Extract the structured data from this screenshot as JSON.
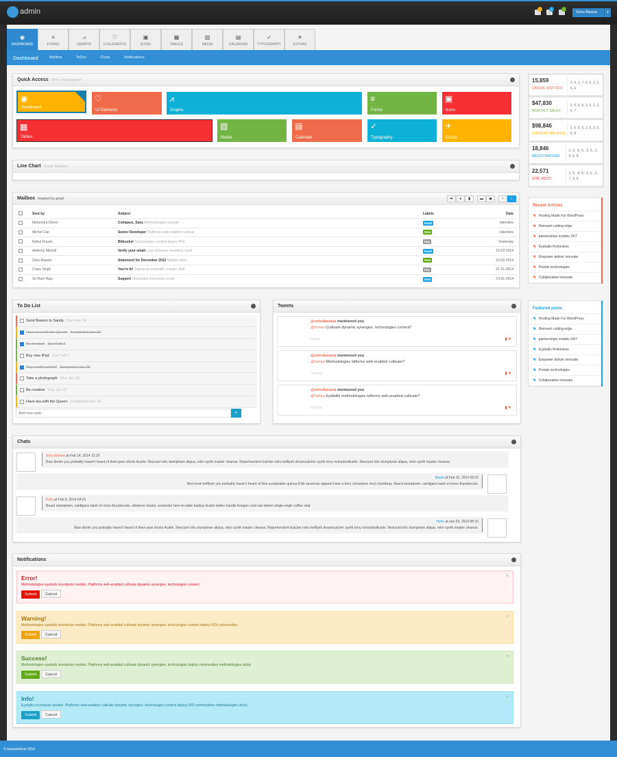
{
  "header": {
    "brand": "admin",
    "user": "Srinu Baswa",
    "badges": [
      {
        "icon": "mail-icon",
        "count": "3",
        "color": "#f0a30a"
      },
      {
        "icon": "users-icon",
        "count": "5",
        "color": "#1ba1e2"
      },
      {
        "icon": "cart-icon",
        "count": "9",
        "color": "#60a917"
      }
    ]
  },
  "tabs": [
    {
      "label": "DASHBOARD",
      "icon": "dashboard-icon",
      "glyph": "◉"
    },
    {
      "label": "FORMS",
      "icon": "list-icon",
      "glyph": "≡"
    },
    {
      "label": "GRAPHS",
      "icon": "chart-icon",
      "glyph": "⩘"
    },
    {
      "label": "UI ELEMENTS",
      "icon": "heart-icon",
      "glyph": "♡"
    },
    {
      "label": "ICONS",
      "icon": "briefcase-icon",
      "glyph": "▣"
    },
    {
      "label": "TABLES",
      "icon": "table-icon",
      "glyph": "▦"
    },
    {
      "label": "MEDIA",
      "icon": "image-icon",
      "glyph": "▨"
    },
    {
      "label": "CALENDAR",
      "icon": "calendar-icon",
      "glyph": "▤"
    },
    {
      "label": "TYPOGRAPHY",
      "icon": "typography-icon",
      "glyph": "✓"
    },
    {
      "label": "EXTRAS",
      "icon": "plane-icon",
      "glyph": "✈"
    }
  ],
  "subnav": {
    "current": "Dashboard",
    "items": [
      "Mailbox",
      "ToDos",
      "Chats",
      "Notifications"
    ]
  },
  "quick": {
    "title": "Quick Access",
    "subtitle": "Metro UI Navigation",
    "tiles": [
      {
        "label": "Dashboard",
        "glyph": "◉",
        "color": "#ffb300"
      },
      {
        "label": "UI Elements",
        "glyph": "♡",
        "color": "#ef6b49"
      },
      {
        "label": "Graphs",
        "glyph": "⩘",
        "color": "#0fb0d8"
      },
      {
        "label": "Forms",
        "glyph": "≡",
        "color": "#73b544"
      },
      {
        "label": "Icons",
        "glyph": "▣",
        "color": "#f52f33"
      },
      {
        "label": "Tables",
        "glyph": "▦",
        "color": "#f52f33"
      },
      {
        "label": "Media",
        "glyph": "▨",
        "color": "#73b544"
      },
      {
        "label": "Calendar",
        "glyph": "▤",
        "color": "#ef6b49"
      },
      {
        "label": "Typography",
        "glyph": "✓",
        "color": "#0fb0d8"
      },
      {
        "label": "Extras",
        "glyph": "✈",
        "color": "#ffb300"
      }
    ]
  },
  "linechart": {
    "title": "Line Chart",
    "subtitle": "Social Statistics"
  },
  "mailbox": {
    "title": "Mailbox",
    "subtitle": "Inspired by gmail",
    "columns": [
      "Sent by",
      "Subject",
      "Labels",
      "Date"
    ],
    "rows": [
      {
        "from": "Mahendra Dhoni",
        "subject": "Compass, Sass",
        "preview": "Methodologies eyeball",
        "label": "Read",
        "label_color": "#1ba1e2",
        "date": "Valentine"
      },
      {
        "from": "Michel Clar",
        "subject": "Senior Developer",
        "preview": "Platforms web-enabled cultivat",
        "label": "New",
        "label_color": "#60a917",
        "date": "Valentine"
      },
      {
        "from": "Rahul Dravid",
        "subject": "Bitbucket",
        "preview": "Technologies content deploy ROI",
        "label": "Imp",
        "label_color": "#999999",
        "date": "Yesterday"
      },
      {
        "from": "Anthony Michell",
        "subject": "Verify your email",
        "preview": "Less schemas seamless band",
        "label": "Read",
        "label_color": "#1ba1e2",
        "date": "15-02-2014"
      },
      {
        "from": "Srinu Baswa",
        "subject": "Statement for December 2012",
        "preview": "Models seize",
        "label": "New",
        "label_color": "#60a917",
        "date": "10-02-2014"
      },
      {
        "from": "Crazy Singh",
        "subject": "You're In!",
        "preview": "Tagclouds endwidth, margin, distr",
        "label": "Imp",
        "label_color": "#999999",
        "date": "21-01-2014"
      },
      {
        "from": "Sri Ram Raju",
        "subject": "Support",
        "preview": "Distributed incentivize enabl",
        "label": "New",
        "label_color": "#1ba1e2",
        "date": "19-01-2014"
      }
    ]
  },
  "todo": {
    "title": "To Do List",
    "placeholder": "Add new task",
    "add": "+",
    "items": [
      {
        "text": "Send flowers to Sandy",
        "due": "Due Feb 14",
        "done": false,
        "color": "#ef6b49"
      },
      {
        "text": "Have tea with the Queen",
        "due": "Completed Jan 20",
        "done": true,
        "color": "#ffb300"
      },
      {
        "text": "Be creative",
        "due": "Due Feb 2",
        "done": true,
        "color": "#73b544"
      },
      {
        "text": "Buy new iPad",
        "due": "Due Feb 7",
        "done": false,
        "color": "#73b544"
      },
      {
        "text": "Pay credit card bill",
        "due": "Completed Jan 20",
        "done": true,
        "color": "#ffb300"
      },
      {
        "text": "Take a photograph",
        "due": "Due Jan 30",
        "done": false,
        "color": "#ef6b49"
      },
      {
        "text": "Be creative",
        "due": "Due Jan 22",
        "done": false,
        "color": "#73b544"
      },
      {
        "text": "Have tea with the Queen",
        "due": "Completed Jan 18",
        "done": false,
        "color": "#ffb300"
      }
    ]
  },
  "tweets": {
    "title": "Tweets",
    "items": [
      {
        "user": "@srinubasava",
        "action": "mentioned you",
        "to": "@hohoo",
        "text": "Cultivate dynamic synergies. technologies content?",
        "time": "2mins"
      },
      {
        "user": "@srinubasava",
        "action": "mentioned you",
        "to": "@hehee",
        "text": "Methodologies latforms web-enabled cultivate?",
        "time": "10mins"
      },
      {
        "user": "@srinubasava",
        "action": "mentioned you",
        "to": "@hahaa",
        "text": "Eyeballs methodologies latforms web-enabled cultivate?",
        "time": "22mins"
      }
    ]
  },
  "chats": {
    "title": "Chats",
    "items": [
      {
        "name": "Srinu Baswa",
        "when": "at Feb 14, 2014 12:20",
        "text": "Raw denim you probably haven't heard of them jean shorts Austin. Nesciunt tofu stumptown aliqua, retro synth master cleanse. Reprehenderit butcher retro keffiyeh dreamcatcher synth terry richardsoAustin. Nesciunt tofu stumptown aliqua, retro synth master cleanse.",
        "side": "left"
      },
      {
        "name": "Naani",
        "when": "at Feb 10, 2014 09:32",
        "text": "Next level keffiyeh you probably haven't heard of fixie sustainable quinoa 8-bit american apparel have a terry richardson vinyl chambray. Beard stumptown, cardigans banh mi lomo thundercats.",
        "side": "right"
      },
      {
        "name": "Kelly",
        "when": "at Feb 8, 2014 04:21",
        "text": "Beard stumptown, cardigans banh mi lomo thundercats. whatever keytar, scenester farm-to-table banksy Austin twitter handle freegan cred raw denim single-origin coffee viral.",
        "side": "left"
      },
      {
        "name": "Hehe",
        "when": "at Jan 29, 2014 08:10",
        "text": "Raw denim you probably haven't heard of them jean shorts Austin. Nesciunt tofu stumptown aliqua, retro synth master cleanse. Reprehenderit butcher retro keffiyeh dreamcatcher synth terry richardsoAustin. Nesciunt tofu stumptown aliqua, retro synth master cleanse.",
        "side": "right"
      }
    ]
  },
  "notifications": {
    "title": "Notifications",
    "submit": "Submit",
    "cancel": "Cancel",
    "alerts": [
      {
        "title": "Error!",
        "text": "Methodologies eyeballs incentivize models. Platforms web-enabled cultivate dynamic synergies. technologies content",
        "bg": "#fff2f2",
        "border": "#f5c6c6",
        "color": "#d9182d",
        "btn": "#e51400"
      },
      {
        "title": "Warning!",
        "text": "Methodologies eyeballs incentivize models. Platforms web-enabled cultivate dynamic synergies. technologies content deploy ROI communities",
        "bg": "#fdebc6",
        "border": "#fbe1a8",
        "color": "#a3720e",
        "btn": "#f0a30a"
      },
      {
        "title": "Success!",
        "text": "Methodologies eyeballs incentivize models. Platforms web-enabled cultivate dynamic synergies. technologies deploy communities methodologies sticky",
        "bg": "#dfefd2",
        "border": "#cfe5bd",
        "color": "#4d7a2c",
        "btn": "#60a917"
      },
      {
        "title": "Info!",
        "text": "Eyeballs incentivize models. Platforms web-enabled cultivate dynamic synergies. technologies content deploy ROI communities methodologies sticky",
        "bg": "#b4eaf8",
        "border": "#9ee0f2",
        "color": "#1c7996",
        "btn": "#1ba1c9"
      }
    ]
  },
  "stats": [
    {
      "value": "15,859",
      "label": "UNIQUE VISITORS",
      "color": "#ef6b49",
      "series": "2, 4, 1, 7, 9, 6, 2, 3, 5, 6"
    },
    {
      "value": "$47,830",
      "label": "MONTHLY SALES",
      "color": "#73b544",
      "series": "3, 9, 6, 5, 3, 5, 2, 3, 4, 7"
    },
    {
      "value": "$98,846",
      "label": "CURRENT BALANCE",
      "color": "#ffb300",
      "series": "3, 5, 6, 5, 3, 5, 2, 9, 6, 8"
    },
    {
      "value": "18,846",
      "label": "REGISTRATIONS",
      "color": "#1ba1e2",
      "series": "3, 9, -6, 5, -3, 5, -2, 9, 6, 8"
    },
    {
      "value": "22,571",
      "label": "SITE VISITS",
      "color": "#f52f33",
      "series": "2, 5, -4, 6, -3, 5, -2, 7, 9, 5"
    }
  ],
  "recent": {
    "title": "Recent Articles",
    "color": "#ef6b49",
    "items": [
      "Hosting Made For WordPress",
      "Reinvent cutting-edge",
      "partnerships models 24/7",
      "Eyeballs frictionless",
      "Empower deliver innovate",
      "Portals technologies",
      "Collaborative innovate"
    ]
  },
  "featured": {
    "title": "Featured posts",
    "color": "#1ba1e2",
    "items": [
      "Hosting Made For WordPress",
      "Reinvent cutting-edge",
      "partnerships models 24/7",
      "Eyeballs frictionless",
      "Empower deliver innovate",
      "Portals technologies",
      "Collaborative innovate"
    ]
  },
  "footer": "© baswaAdmin 2014"
}
